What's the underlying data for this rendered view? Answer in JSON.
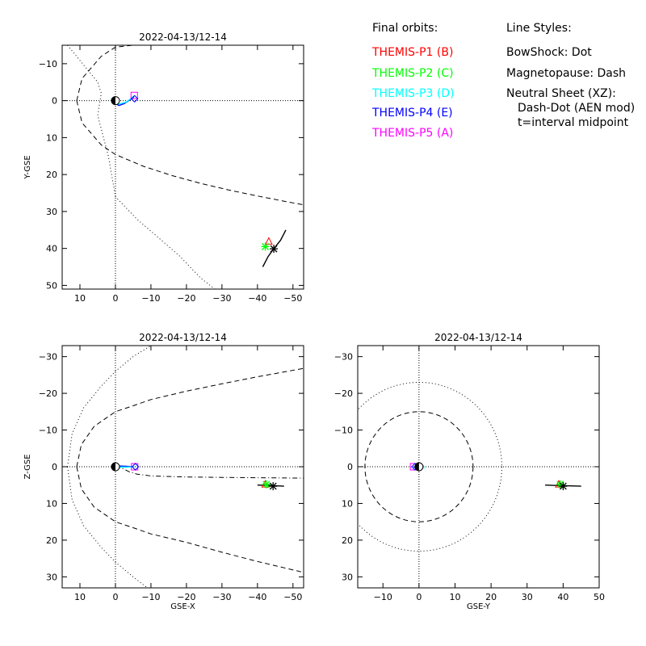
{
  "legend": {
    "orbits_title": "Final orbits:",
    "probes": [
      {
        "label": "THEMIS-P1 (B)",
        "color": "#ff0000"
      },
      {
        "label": "THEMIS-P2 (C)",
        "color": "#00ff00"
      },
      {
        "label": "THEMIS-P3 (D)",
        "color": "#00ffff"
      },
      {
        "label": "THEMIS-P4 (E)",
        "color": "#0000ff"
      },
      {
        "label": "THEMIS-P5 (A)",
        "color": "#ff00ff"
      }
    ],
    "styles_title": "Line Styles:",
    "styles": [
      "BowShock: Dot",
      "Magnetopause: Dash",
      "Neutral Sheet (XZ):",
      "Dash-Dot (AEN mod)",
      "t=interval midpoint"
    ]
  },
  "chart_data": [
    {
      "type": "line",
      "title": "2022-04-13/12-14",
      "xlabel": "",
      "ylabel": "Y-GSE",
      "xlim": [
        15,
        -53
      ],
      "ylim": [
        -15,
        51
      ],
      "xticks": [
        10,
        0,
        -10,
        -20,
        -30,
        -40,
        -50
      ],
      "yticks": [
        -10,
        0,
        10,
        20,
        30,
        40,
        50
      ],
      "grid": "dotted zero axes",
      "series": [
        {
          "color": "#000000",
          "style": "dash",
          "points": [
            [
              10.9,
              0
            ],
            [
              9.4,
              -6
            ],
            [
              4.0,
              -12
            ],
            [
              0,
              -14.5
            ],
            [
              -5,
              -15
            ]
          ],
          "mirror": true
        },
        {
          "color": "#000000",
          "style": "dash",
          "points": [
            [
              10.9,
              0
            ],
            [
              9.4,
              6
            ],
            [
              4.0,
              12
            ],
            [
              0,
              14.6
            ],
            [
              -8,
              17.8
            ],
            [
              -16,
              20.3
            ],
            [
              -24,
              22.4
            ],
            [
              -32,
              24.2
            ],
            [
              -40,
              25.8
            ],
            [
              -48,
              27.3
            ],
            [
              -53,
              28.2
            ]
          ]
        },
        {
          "color": "#000000",
          "style": "dot",
          "points": [
            [
              13.5,
              -15
            ],
            [
              5,
              -5
            ],
            [
              4,
              -2
            ],
            [
              5,
              4
            ],
            [
              2,
              15
            ],
            [
              0,
              26
            ],
            [
              -6,
              32
            ],
            [
              -12,
              37
            ],
            [
              -18,
              42
            ],
            [
              -24,
              48
            ],
            [
              -28,
              51
            ]
          ]
        },
        {
          "color": "#0000ff",
          "style": "solid",
          "points": [
            [
              -5.2,
              -1.0
            ],
            [
              -4.2,
              -0.3
            ],
            [
              -2.5,
              0.8
            ],
            [
              -1.0,
              1.3
            ],
            [
              0.3,
              0.6
            ],
            [
              0.8,
              -0.2
            ]
          ]
        },
        {
          "color": "#00ffff",
          "style": "solid",
          "points": [
            [
              -5.3,
              -1.3
            ],
            [
              -4.5,
              -0.7
            ],
            [
              -3.0,
              0.4
            ],
            [
              -1.0,
              0.9
            ],
            [
              0.5,
              0.5
            ],
            [
              1.2,
              -0.6
            ]
          ]
        },
        {
          "color": "#000000",
          "style": "solid",
          "points": [
            [
              -41.5,
              45
            ],
            [
              -43,
              42.2
            ],
            [
              -44.5,
              40.2
            ],
            [
              -46.5,
              37.8
            ],
            [
              -48,
              35
            ]
          ]
        }
      ],
      "markers": [
        {
          "name": "p5-square",
          "shape": "square",
          "color": "#ff00ff",
          "x": -5.3,
          "y": -1.4
        },
        {
          "name": "p4-diamond",
          "shape": "diamond",
          "color": "#0000ff",
          "x": -5.4,
          "y": -0.5
        },
        {
          "name": "p1-triangle",
          "shape": "triangle",
          "color": "#ff0000",
          "x": -43.2,
          "y": 38.2
        },
        {
          "name": "p2-asterisk",
          "shape": "asterisk",
          "color": "#00ff00",
          "x": -42.2,
          "y": 39.5
        },
        {
          "name": "moon-asterisk",
          "shape": "asterisk",
          "color": "#000000",
          "x": -44.6,
          "y": 40.1
        },
        {
          "name": "earth",
          "shape": "earth",
          "color": "#000000",
          "x": 0,
          "y": 0
        }
      ]
    },
    {
      "type": "line",
      "title": "2022-04-13/12-14",
      "xlabel": "GSE-X",
      "ylabel": "Z-GSE",
      "xlim": [
        15,
        -53
      ],
      "ylim": [
        -33,
        33
      ],
      "xticks": [
        10,
        0,
        -10,
        -20,
        -30,
        -40,
        -50
      ],
      "yticks": [
        -30,
        -20,
        -10,
        0,
        10,
        20,
        30
      ],
      "grid": "dotted zero axes",
      "series": [
        {
          "color": "#000000",
          "style": "dash",
          "points": [
            [
              10.9,
              0
            ],
            [
              9.6,
              6
            ],
            [
              6,
              11
            ],
            [
              0,
              15
            ],
            [
              -5,
              16.6
            ],
            [
              -10,
              18.3
            ],
            [
              -20,
              20.6
            ],
            [
              -30,
              23.3
            ],
            [
              -40,
              25.8
            ],
            [
              -53,
              28.8
            ]
          ]
        },
        {
          "color": "#000000",
          "style": "dash",
          "points": [
            [
              10.9,
              0
            ],
            [
              9.6,
              -6
            ],
            [
              6,
              -11
            ],
            [
              0,
              -15
            ],
            [
              -5,
              -16.6
            ],
            [
              -10,
              -18.3
            ],
            [
              -20,
              -20.6
            ],
            [
              -30,
              -22.6
            ],
            [
              -40,
              -24.5
            ],
            [
              -53,
              -26.8
            ]
          ]
        },
        {
          "color": "#000000",
          "style": "dot",
          "points": [
            [
              13.5,
              0
            ],
            [
              12.2,
              9
            ],
            [
              9,
              16
            ],
            [
              4,
              22
            ],
            [
              0,
              26
            ],
            [
              -5,
              30
            ],
            [
              -9,
              33
            ]
          ]
        },
        {
          "color": "#000000",
          "style": "dot",
          "points": [
            [
              13.5,
              0
            ],
            [
              12.2,
              -9
            ],
            [
              9,
              -16
            ],
            [
              4,
              -22
            ],
            [
              0,
              -26
            ],
            [
              -5,
              -30
            ],
            [
              -10,
              -33
            ]
          ]
        },
        {
          "color": "#000000",
          "style": "dashdot",
          "points": [
            [
              0,
              0
            ],
            [
              -2,
              0.5
            ],
            [
              -4,
              1.4
            ],
            [
              -6,
              2.0
            ],
            [
              -10,
              2.5
            ],
            [
              -20,
              2.8
            ],
            [
              -30,
              2.9
            ],
            [
              -40,
              3.0
            ],
            [
              -53,
              3.1
            ]
          ]
        },
        {
          "color": "#0000ff",
          "style": "solid",
          "points": [
            [
              -5.2,
              0
            ],
            [
              -3,
              -0.1
            ],
            [
              -1,
              -0.2
            ],
            [
              0.3,
              -0.1
            ],
            [
              0.8,
              0.1
            ]
          ]
        },
        {
          "color": "#00ffff",
          "style": "solid",
          "points": [
            [
              -5.3,
              0
            ],
            [
              -3,
              0.1
            ],
            [
              -1,
              0.1
            ],
            [
              0.5,
              0.2
            ],
            [
              1.2,
              0.1
            ]
          ]
        },
        {
          "color": "#000000",
          "style": "solid",
          "points": [
            [
              -40,
              5.0
            ],
            [
              -43,
              5.1
            ],
            [
              -45,
              5.2
            ],
            [
              -47.5,
              5.3
            ]
          ]
        }
      ],
      "markers": [
        {
          "name": "p5-square",
          "shape": "square",
          "color": "#ff00ff",
          "x": -5.4,
          "y": 0
        },
        {
          "name": "p4-diamond",
          "shape": "diamond",
          "color": "#0000ff",
          "x": -5.6,
          "y": 0
        },
        {
          "name": "p1-triangle",
          "shape": "triangle",
          "color": "#ff0000",
          "x": -42.2,
          "y": 4.9
        },
        {
          "name": "p2-asterisk",
          "shape": "asterisk",
          "color": "#00ff00",
          "x": -42.5,
          "y": 4.8
        },
        {
          "name": "moon-asterisk",
          "shape": "asterisk",
          "color": "#000000",
          "x": -44.4,
          "y": 5.3
        },
        {
          "name": "earth",
          "shape": "earth",
          "color": "#000000",
          "x": 0,
          "y": 0
        }
      ]
    },
    {
      "type": "line",
      "title": "2022-04-13/12-14",
      "xlabel": "GSE-Y",
      "ylabel": "",
      "xlim": [
        -17,
        50
      ],
      "ylim": [
        -33,
        33
      ],
      "xticks": [
        -10,
        0,
        10,
        20,
        30,
        40,
        50
      ],
      "yticks": [
        -30,
        -20,
        -10,
        0,
        10,
        20,
        30
      ],
      "grid": "dotted zero axes",
      "circles": [
        {
          "style": "dash",
          "radius": 15
        },
        {
          "style": "dot",
          "radius": 23
        }
      ],
      "series": [
        {
          "color": "#0000ff",
          "style": "solid",
          "points": [
            [
              -1.5,
              0
            ],
            [
              -0.5,
              0.6
            ],
            [
              0.8,
              0.5
            ],
            [
              1.2,
              -0.2
            ],
            [
              0.2,
              -0.7
            ],
            [
              -1.0,
              -0.4
            ]
          ]
        },
        {
          "color": "#00ffff",
          "style": "solid",
          "points": [
            [
              -1.3,
              0
            ],
            [
              0,
              0.8
            ],
            [
              1.4,
              0.2
            ],
            [
              0.6,
              -0.8
            ],
            [
              -0.8,
              -0.6
            ]
          ]
        },
        {
          "color": "#000000",
          "style": "solid",
          "points": [
            [
              35,
              5.0
            ],
            [
              38,
              5.1
            ],
            [
              41,
              5.2
            ],
            [
              45,
              5.3
            ]
          ]
        }
      ],
      "markers": [
        {
          "name": "p5-square",
          "shape": "square",
          "color": "#ff00ff",
          "x": -1.5,
          "y": 0
        },
        {
          "name": "p4-diamond",
          "shape": "diamond",
          "color": "#0000ff",
          "x": -1.1,
          "y": 0
        },
        {
          "name": "p1-triangle",
          "shape": "triangle",
          "color": "#ff0000",
          "x": 38.8,
          "y": 4.9
        },
        {
          "name": "p2-asterisk",
          "shape": "asterisk",
          "color": "#00ff00",
          "x": 39.2,
          "y": 4.8
        },
        {
          "name": "moon-asterisk",
          "shape": "asterisk",
          "color": "#000000",
          "x": 40.0,
          "y": 5.3
        },
        {
          "name": "earth",
          "shape": "earth",
          "color": "#000000",
          "x": 0,
          "y": 0
        }
      ]
    }
  ]
}
